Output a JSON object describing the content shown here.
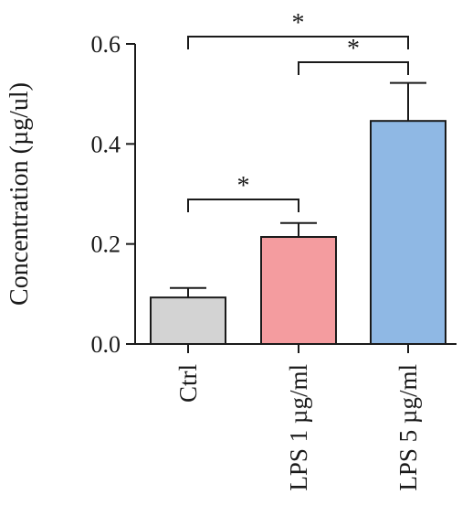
{
  "chart_data": {
    "type": "bar",
    "title": "",
    "xlabel": "",
    "ylabel": "Concentration (µg/ul)",
    "ylim": [
      0,
      0.6
    ],
    "yticks": [
      0.0,
      0.2,
      0.4,
      0.6
    ],
    "ytick_labels": [
      "0.0",
      "0.2",
      "0.4",
      "0.6"
    ],
    "categories": [
      "Ctrl",
      "LPS 1 µg/ml",
      "LPS 5 µg/ml"
    ],
    "values": [
      0.093,
      0.214,
      0.446
    ],
    "errors": [
      0.019,
      0.028,
      0.076
    ],
    "colors": [
      "#d3d3d3",
      "#f49c9f",
      "#8fb8e4"
    ],
    "grid": false,
    "legend": "none",
    "significance": [
      {
        "from": 0,
        "to": 1,
        "label": "*"
      },
      {
        "from": 1,
        "to": 2,
        "label": "*"
      },
      {
        "from": 0,
        "to": 2,
        "label": "*"
      }
    ]
  }
}
